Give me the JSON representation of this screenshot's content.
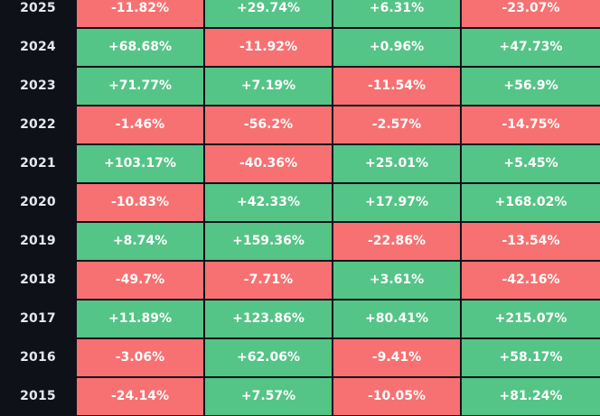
{
  "colors": {
    "positive": "#55c487",
    "negative": "#f77172",
    "background": "#0f1118"
  },
  "rows": [
    {
      "year": "2025",
      "values": [
        "-11.82%",
        "+29.74%",
        "+6.31%",
        "-23.07%"
      ]
    },
    {
      "year": "2024",
      "values": [
        "+68.68%",
        "-11.92%",
        "+0.96%",
        "+47.73%"
      ]
    },
    {
      "year": "2023",
      "values": [
        "+71.77%",
        "+7.19%",
        "-11.54%",
        "+56.9%"
      ]
    },
    {
      "year": "2022",
      "values": [
        "-1.46%",
        "-56.2%",
        "-2.57%",
        "-14.75%"
      ]
    },
    {
      "year": "2021",
      "values": [
        "+103.17%",
        "-40.36%",
        "+25.01%",
        "+5.45%"
      ]
    },
    {
      "year": "2020",
      "values": [
        "-10.83%",
        "+42.33%",
        "+17.97%",
        "+168.02%"
      ]
    },
    {
      "year": "2019",
      "values": [
        "+8.74%",
        "+159.36%",
        "-22.86%",
        "-13.54%"
      ]
    },
    {
      "year": "2018",
      "values": [
        "-49.7%",
        "-7.71%",
        "+3.61%",
        "-42.16%"
      ]
    },
    {
      "year": "2017",
      "values": [
        "+11.89%",
        "+123.86%",
        "+80.41%",
        "+215.07%"
      ]
    },
    {
      "year": "2016",
      "values": [
        "-3.06%",
        "+62.06%",
        "-9.41%",
        "+58.17%"
      ]
    },
    {
      "year": "2015",
      "values": [
        "-24.14%",
        "+7.57%",
        "-10.05%",
        "+81.24%"
      ]
    }
  ]
}
